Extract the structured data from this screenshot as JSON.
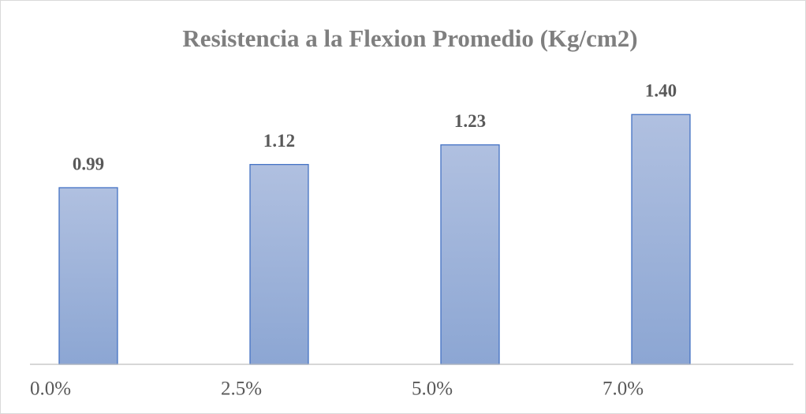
{
  "chart_data": {
    "type": "bar",
    "title": "Resistencia a la Flexion Promedio (Kg/cm2)",
    "categories": [
      "0.0%",
      "2.5%",
      "5.0%",
      "7.0%"
    ],
    "values": [
      0.99,
      1.12,
      1.23,
      1.4
    ],
    "value_labels": [
      "0.99",
      "1.12",
      "1.23",
      "1.40"
    ],
    "color": "#4472c4",
    "ylim": [
      0,
      1.6
    ]
  }
}
